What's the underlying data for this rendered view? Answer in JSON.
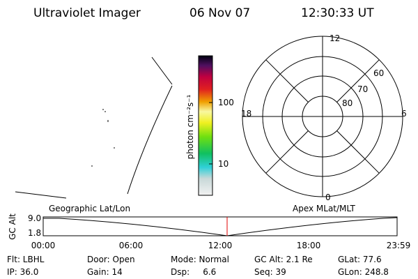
{
  "header": {
    "title": "Ultraviolet Imager",
    "date": "06 Nov 07",
    "time": "12:30:33 UT"
  },
  "colorbar": {
    "label": "photon cm⁻²s⁻¹",
    "ticks": [
      "100",
      "10"
    ]
  },
  "polar": {
    "mlt_labels": [
      "12",
      "18",
      "6",
      "0"
    ],
    "lat_labels": [
      "60",
      "70",
      "80"
    ]
  },
  "timeline": {
    "left_title": "Geographic Lat/Lon",
    "right_title": "Apex MLat/MLT",
    "y_label": "GC Alt",
    "y_ticks": [
      "9.0",
      "1.8"
    ],
    "x_ticks": [
      "00:00",
      "06:00",
      "12:00",
      "18:00",
      "23:59"
    ]
  },
  "info": {
    "rows": [
      [
        "Flt: LBHL",
        "Door: Open",
        "Mode: Normal",
        "GC Alt: 2.1 Re",
        "GLat: 77.6"
      ],
      [
        "IP: 36.0",
        "Gain: 14",
        "Dsp:     6.6",
        "Seq: 39",
        "GLon: 248.8"
      ]
    ]
  }
}
